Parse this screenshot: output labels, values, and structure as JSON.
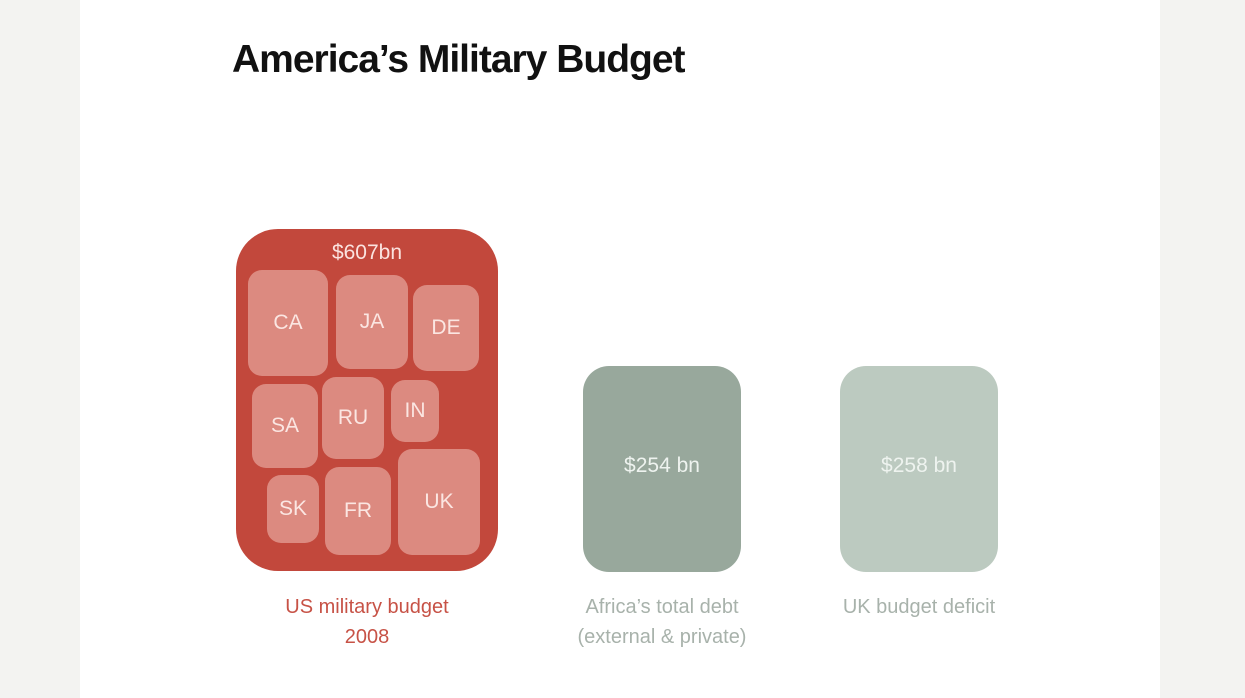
{
  "chart_data": {
    "type": "treemap",
    "title": "America’s Military Budget",
    "unit": "$bn",
    "bars": [
      {
        "value_label": "$607bn",
        "value": 607,
        "label_line1": "US military budget",
        "label_line2": "2008",
        "color": "#c2483c",
        "countries": [
          "CA",
          "JA",
          "DE",
          "SA",
          "RU",
          "IN",
          "SK",
          "FR",
          "UK"
        ]
      },
      {
        "value_label": "$254 bn",
        "value": 254,
        "label_line1": "Africa’s total debt",
        "label_line2": "(external & private)",
        "color": "#98a89c"
      },
      {
        "value_label": "$258 bn",
        "value": 258,
        "label_line1": "UK budget deficit",
        "label_line2": "",
        "color": "#bccac0"
      }
    ]
  }
}
